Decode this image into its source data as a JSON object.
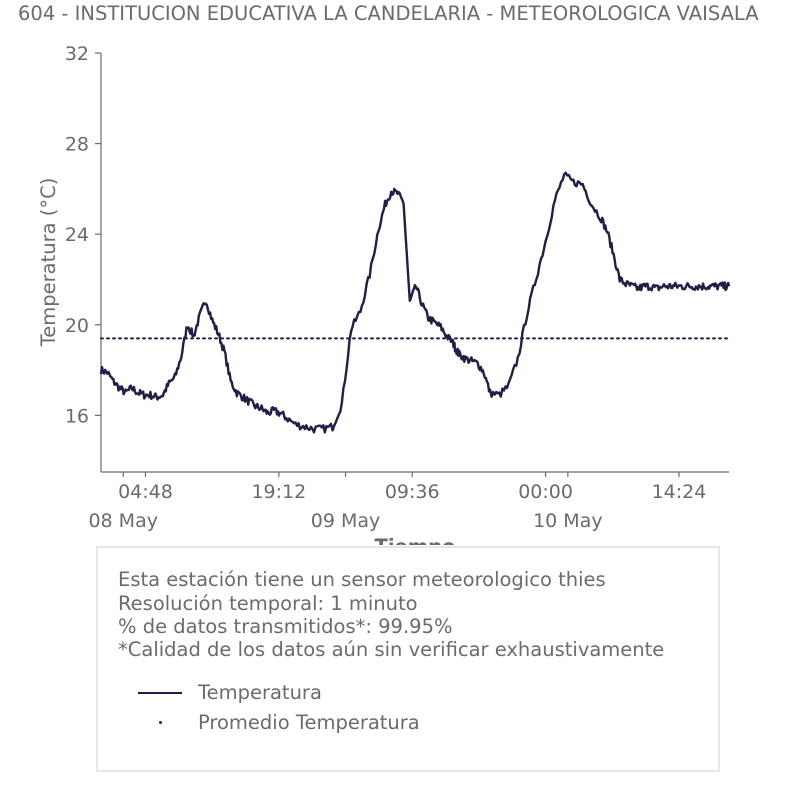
{
  "title": "604 - INSTITUCION EDUCATIVA LA CANDELARIA - METEOROLOGICA VAISALA",
  "colors": {
    "series": "#1f1f47",
    "text": "#6b6b6b",
    "axis": "#6b6b6b",
    "legend_border": "#e6e6e6"
  },
  "chart_data": {
    "type": "line",
    "xlabel": "Tiempo",
    "ylabel": "Temperatura (°C)",
    "ylim": [
      13.5,
      32
    ],
    "yticks": [
      16,
      20,
      24,
      28,
      32
    ],
    "grid": false,
    "x_range": [
      "2019-05-08 00:00",
      "2019-05-10 19:48"
    ],
    "xticks_time": [
      {
        "t": "2019-05-08 04:48",
        "label": "04:48"
      },
      {
        "t": "2019-05-08 19:12",
        "label": "19:12"
      },
      {
        "t": "2019-05-09 09:36",
        "label": "09:36"
      },
      {
        "t": "2019-05-10 00:00",
        "label": "00:00"
      },
      {
        "t": "2019-05-10 14:24",
        "label": "14:24"
      }
    ],
    "xticks_date": [
      {
        "t": "2019-05-08 02:24",
        "label": "08 May"
      },
      {
        "t": "2019-05-09 02:24",
        "label": "09 May"
      },
      {
        "t": "2019-05-10 02:24",
        "label": "10 May"
      }
    ],
    "series": [
      {
        "name": "Temperatura",
        "style": "solid",
        "x": [
          "2019-05-08 00:00",
          "2019-05-08 00:40",
          "2019-05-08 01:20",
          "2019-05-08 02:00",
          "2019-05-08 02:40",
          "2019-05-08 03:20",
          "2019-05-08 04:00",
          "2019-05-08 04:40",
          "2019-05-08 05:20",
          "2019-05-08 06:00",
          "2019-05-08 06:40",
          "2019-05-08 07:20",
          "2019-05-08 08:00",
          "2019-05-08 08:40",
          "2019-05-08 09:20",
          "2019-05-08 10:00",
          "2019-05-08 10:40",
          "2019-05-08 11:20",
          "2019-05-08 12:00",
          "2019-05-08 12:40",
          "2019-05-08 13:20",
          "2019-05-08 14:00",
          "2019-05-08 14:40",
          "2019-05-08 15:20",
          "2019-05-08 16:00",
          "2019-05-08 16:40",
          "2019-05-08 17:20",
          "2019-05-08 18:00",
          "2019-05-08 18:40",
          "2019-05-08 19:20",
          "2019-05-08 20:00",
          "2019-05-08 21:00",
          "2019-05-08 22:00",
          "2019-05-08 23:00",
          "2019-05-09 00:00",
          "2019-05-09 01:00",
          "2019-05-09 02:00",
          "2019-05-09 03:00",
          "2019-05-09 04:00",
          "2019-05-09 05:00",
          "2019-05-09 06:00",
          "2019-05-09 06:40",
          "2019-05-09 07:20",
          "2019-05-09 08:00",
          "2019-05-09 08:40",
          "2019-05-09 09:20",
          "2019-05-09 10:00",
          "2019-05-09 10:40",
          "2019-05-09 11:20",
          "2019-05-09 12:00",
          "2019-05-09 12:40",
          "2019-05-09 13:20",
          "2019-05-09 14:00",
          "2019-05-09 14:20",
          "2019-05-09 14:40",
          "2019-05-09 15:20",
          "2019-05-09 16:00",
          "2019-05-09 16:40",
          "2019-05-09 17:20",
          "2019-05-09 18:00",
          "2019-05-09 19:00",
          "2019-05-09 20:00",
          "2019-05-09 21:00",
          "2019-05-09 22:00",
          "2019-05-09 23:00",
          "2019-05-10 00:00",
          "2019-05-10 01:00",
          "2019-05-10 02:00",
          "2019-05-10 03:00",
          "2019-05-10 04:00",
          "2019-05-10 05:00",
          "2019-05-10 06:00",
          "2019-05-10 06:40",
          "2019-05-10 07:20",
          "2019-05-10 08:00",
          "2019-05-10 08:40",
          "2019-05-10 09:20",
          "2019-05-10 10:00",
          "2019-05-10 10:40",
          "2019-05-10 11:20",
          "2019-05-10 12:00",
          "2019-05-10 12:40",
          "2019-05-10 13:20",
          "2019-05-10 14:00",
          "2019-05-10 14:40",
          "2019-05-10 15:20",
          "2019-05-10 16:00",
          "2019-05-10 16:40",
          "2019-05-10 17:20",
          "2019-05-10 18:00",
          "2019-05-10 18:40",
          "2019-05-10 19:20",
          "2019-05-10 19:48"
        ],
        "values": [
          18.0,
          17.9,
          17.5,
          17.2,
          17.0,
          17.2,
          17.0,
          16.9,
          16.9,
          16.8,
          16.9,
          17.4,
          17.7,
          18.6,
          20.0,
          19.5,
          20.4,
          21.1,
          20.2,
          19.6,
          18.8,
          17.5,
          17.0,
          16.8,
          16.6,
          16.4,
          16.3,
          16.1,
          16.2,
          16.1,
          15.9,
          15.6,
          15.5,
          15.4,
          15.4,
          15.5,
          16.5,
          19.8,
          20.6,
          22.2,
          24.3,
          25.3,
          25.9,
          25.8,
          25.4,
          21.0,
          21.7,
          20.9,
          20.3,
          20.1,
          19.9,
          19.5,
          19.2,
          18.9,
          18.7,
          18.5,
          18.4,
          18.3,
          17.9,
          17.0,
          16.9,
          17.3,
          18.5,
          20.5,
          22.1,
          23.7,
          25.5,
          26.6,
          26.3,
          26.2,
          25.3,
          24.7,
          24.1,
          23.1,
          22.0,
          21.8,
          21.7,
          21.6,
          21.7,
          21.7,
          21.6,
          21.7,
          21.7,
          21.7,
          21.7,
          21.7,
          21.7,
          21.7,
          21.7,
          21.7,
          21.7,
          21.7,
          21.7
        ]
      },
      {
        "name": "Promedio Temperatura",
        "style": "dotted",
        "values": [
          19.4
        ]
      }
    ],
    "legend_placement": "below-chart"
  },
  "info": {
    "line1": "Esta estación tiene un sensor meteorologico thies",
    "line2": "Resolución temporal: 1 minuto",
    "line3": "% de datos transmitidos*: 99.95%",
    "line4": "*Calidad de los datos aún sin verificar exhaustivamente"
  },
  "legend": {
    "series_label": "Temperatura",
    "mean_label": "Promedio Temperatura"
  }
}
